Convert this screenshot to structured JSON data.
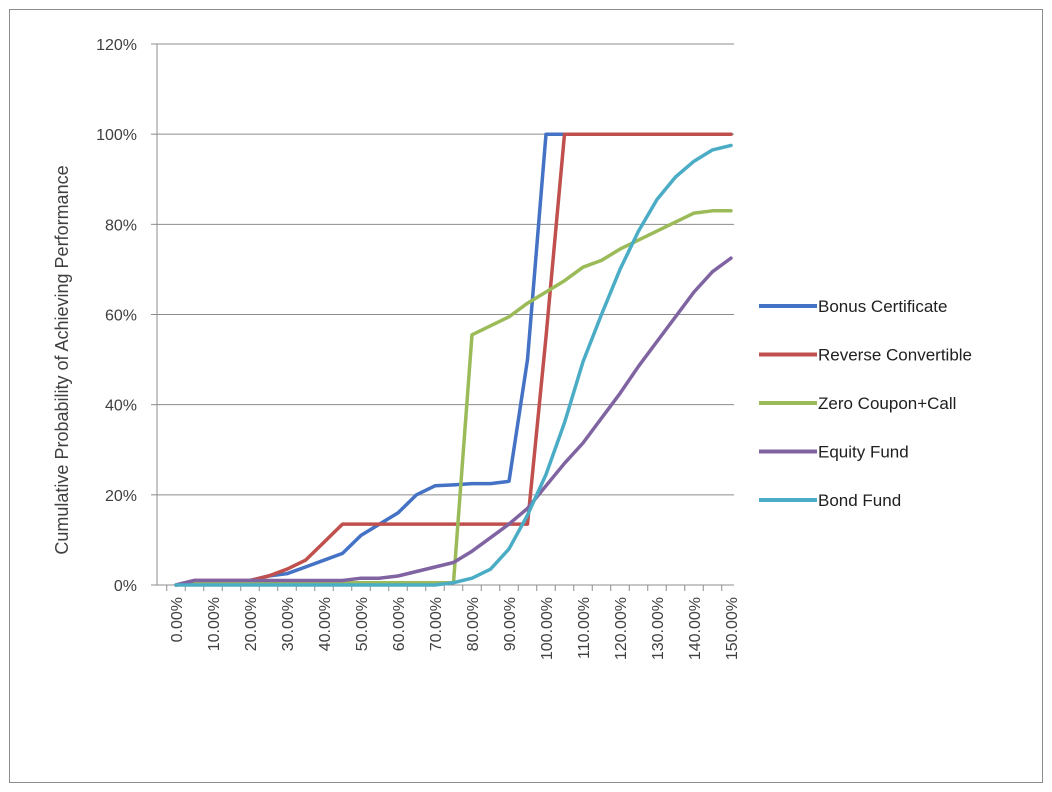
{
  "chart_data": {
    "type": "line",
    "title": "",
    "ylabel": "Cumulative Probability of Achieving Performance",
    "xlabel": "",
    "ylim": [
      0,
      120
    ],
    "yticks": [
      "0%",
      "20%",
      "40%",
      "60%",
      "80%",
      "100%",
      "120%"
    ],
    "ytick_values": [
      0,
      20,
      40,
      60,
      80,
      100,
      120
    ],
    "x": [
      0,
      5,
      10,
      15,
      20,
      25,
      30,
      35,
      40,
      45,
      50,
      55,
      60,
      65,
      70,
      75,
      80,
      85,
      90,
      95,
      100,
      105,
      110,
      115,
      120,
      125,
      130,
      135,
      140,
      145,
      150
    ],
    "x_tick_labels": [
      "0.00%",
      "10.00%",
      "20.00%",
      "30.00%",
      "40.00%",
      "50.00%",
      "60.00%",
      "70.00%",
      "80.00%",
      "90.00%",
      "100.00%",
      "110.00%",
      "120.00%",
      "130.00%",
      "140.00%",
      "150.00%"
    ],
    "grid": "horizontal",
    "legend_position": "right",
    "series": [
      {
        "name": "Bonus Certificate",
        "color": "#4472c4",
        "values": [
          0,
          1,
          1,
          1,
          1,
          2,
          2.5,
          4,
          5.5,
          7,
          11,
          13.5,
          16,
          20,
          22,
          22.2,
          22.5,
          22.5,
          23,
          50,
          100,
          100,
          100,
          100,
          100,
          100,
          100,
          100,
          100,
          100,
          100
        ]
      },
      {
        "name": "Reverse Convertible",
        "color": "#c0504d",
        "values": [
          0,
          1,
          1,
          1,
          1,
          2,
          3.5,
          5.5,
          9.5,
          13.5,
          13.5,
          13.5,
          13.5,
          13.5,
          13.5,
          13.5,
          13.5,
          13.5,
          13.5,
          13.5,
          55,
          100,
          100,
          100,
          100,
          100,
          100,
          100,
          100,
          100,
          100
        ]
      },
      {
        "name": "Zero Coupon+Call",
        "color": "#9bbb59",
        "values": [
          0,
          0.5,
          0.5,
          0.5,
          0.5,
          0.5,
          0.5,
          0.5,
          0.5,
          0.5,
          0.5,
          0.5,
          0.5,
          0.5,
          0.5,
          0.5,
          55.5,
          57.5,
          59.5,
          62.5,
          65,
          67.5,
          70.5,
          72,
          74.5,
          76.5,
          78.5,
          80.5,
          82.5,
          83,
          83
        ]
      },
      {
        "name": "Equity Fund",
        "color": "#8064a2",
        "values": [
          0,
          1,
          1,
          1,
          1,
          1,
          1,
          1,
          1,
          1,
          1.5,
          1.5,
          2,
          3,
          4,
          5,
          7.5,
          10.5,
          13.5,
          17,
          22,
          27,
          31.5,
          37,
          42.5,
          48.5,
          54,
          59.5,
          65,
          69.5,
          72.5
        ]
      },
      {
        "name": "Bond Fund",
        "color": "#4bacc6",
        "values": [
          0,
          0,
          0,
          0,
          0,
          0,
          0,
          0,
          0,
          0,
          0,
          0,
          0,
          0,
          0,
          0.5,
          1.5,
          3.5,
          8,
          15.5,
          24.5,
          36,
          49.5,
          60,
          70,
          78.5,
          85.5,
          90.5,
          94,
          96.5,
          97.5
        ]
      }
    ]
  }
}
